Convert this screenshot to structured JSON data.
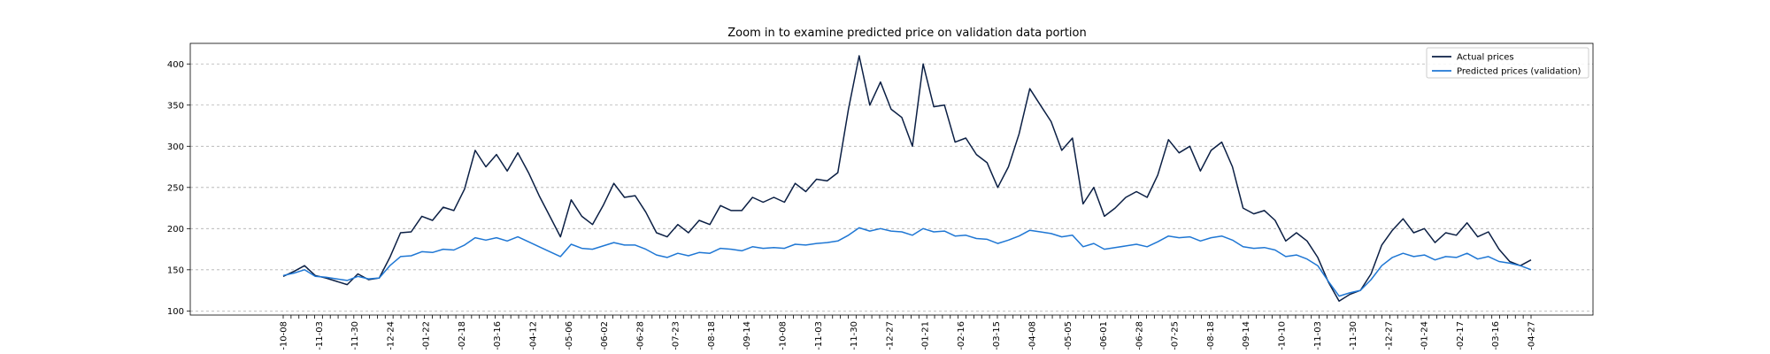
{
  "chart_data": {
    "type": "line",
    "title": "Zoom in to examine predicted price on validation data portion",
    "xlabel": "",
    "ylabel": "",
    "ylim": [
      95,
      425
    ],
    "yticks": [
      100,
      150,
      200,
      250,
      300,
      350,
      400
    ],
    "grid": "y-dashed",
    "legend_position": "top-right",
    "x_tick_labels": [
      "-10-08",
      "-11-03",
      "-11-30",
      "-12-24",
      "-01-22",
      "-02-18",
      "-03-16",
      "-04-12",
      "-05-06",
      "-06-02",
      "-06-28",
      "-07-23",
      "-08-18",
      "-09-14",
      "-10-08",
      "-11-03",
      "-11-30",
      "-12-27",
      "-01-21",
      "-02-16",
      "-03-15",
      "-04-08",
      "-05-05",
      "-06-01",
      "-06-28",
      "-07-25",
      "-08-18",
      "-09-14",
      "-10-10",
      "-11-03",
      "-11-30",
      "-12-27",
      "-01-24",
      "-02-17",
      "-03-16",
      "-04-27"
    ],
    "series": [
      {
        "name": "Actual prices",
        "color": "#0b1f44",
        "values": [
          [
            0,
            142
          ],
          [
            1,
            148
          ],
          [
            2,
            155
          ],
          [
            3,
            143
          ],
          [
            4,
            140
          ],
          [
            5,
            136
          ],
          [
            6,
            132
          ],
          [
            7,
            145
          ],
          [
            8,
            138
          ],
          [
            9,
            140
          ],
          [
            10,
            165
          ],
          [
            11,
            195
          ],
          [
            12,
            196
          ],
          [
            13,
            215
          ],
          [
            14,
            210
          ],
          [
            15,
            226
          ],
          [
            16,
            222
          ],
          [
            17,
            248
          ],
          [
            18,
            295
          ],
          [
            19,
            275
          ],
          [
            20,
            290
          ],
          [
            21,
            270
          ],
          [
            22,
            292
          ],
          [
            23,
            268
          ],
          [
            24,
            240
          ],
          [
            25,
            215
          ],
          [
            26,
            190
          ],
          [
            27,
            235
          ],
          [
            28,
            215
          ],
          [
            29,
            205
          ],
          [
            30,
            228
          ],
          [
            31,
            255
          ],
          [
            32,
            238
          ],
          [
            33,
            240
          ],
          [
            34,
            220
          ],
          [
            35,
            195
          ],
          [
            36,
            190
          ],
          [
            37,
            205
          ],
          [
            38,
            195
          ],
          [
            39,
            210
          ],
          [
            40,
            205
          ],
          [
            41,
            228
          ],
          [
            42,
            222
          ],
          [
            43,
            222
          ],
          [
            44,
            238
          ],
          [
            45,
            232
          ],
          [
            46,
            238
          ],
          [
            47,
            232
          ],
          [
            48,
            255
          ],
          [
            49,
            245
          ],
          [
            50,
            260
          ],
          [
            51,
            258
          ],
          [
            52,
            268
          ],
          [
            53,
            345
          ],
          [
            54,
            410
          ],
          [
            55,
            350
          ],
          [
            56,
            378
          ],
          [
            57,
            345
          ],
          [
            58,
            335
          ],
          [
            59,
            300
          ],
          [
            60,
            400
          ],
          [
            61,
            348
          ],
          [
            62,
            350
          ],
          [
            63,
            305
          ],
          [
            64,
            310
          ],
          [
            65,
            290
          ],
          [
            66,
            280
          ],
          [
            67,
            250
          ],
          [
            68,
            275
          ],
          [
            69,
            315
          ],
          [
            70,
            370
          ],
          [
            71,
            350
          ],
          [
            72,
            330
          ],
          [
            73,
            295
          ],
          [
            74,
            310
          ],
          [
            75,
            230
          ],
          [
            76,
            250
          ],
          [
            77,
            215
          ],
          [
            78,
            225
          ],
          [
            79,
            238
          ],
          [
            80,
            245
          ],
          [
            81,
            238
          ],
          [
            82,
            265
          ],
          [
            83,
            308
          ],
          [
            84,
            292
          ],
          [
            85,
            300
          ],
          [
            86,
            270
          ],
          [
            87,
            295
          ],
          [
            88,
            305
          ],
          [
            89,
            275
          ],
          [
            90,
            225
          ],
          [
            91,
            218
          ],
          [
            92,
            222
          ],
          [
            93,
            210
          ],
          [
            94,
            185
          ],
          [
            95,
            195
          ],
          [
            96,
            185
          ],
          [
            97,
            165
          ],
          [
            98,
            135
          ],
          [
            99,
            112
          ],
          [
            100,
            120
          ],
          [
            101,
            125
          ],
          [
            102,
            145
          ],
          [
            103,
            180
          ],
          [
            104,
            198
          ],
          [
            105,
            212
          ],
          [
            106,
            195
          ],
          [
            107,
            200
          ],
          [
            108,
            183
          ],
          [
            109,
            195
          ],
          [
            110,
            192
          ],
          [
            111,
            207
          ],
          [
            112,
            190
          ],
          [
            113,
            196
          ],
          [
            114,
            175
          ],
          [
            115,
            160
          ],
          [
            116,
            155
          ],
          [
            117,
            162
          ]
        ]
      },
      {
        "name": "Predicted prices (validation)",
        "color": "#1f77d4",
        "values": [
          [
            0,
            143
          ],
          [
            1,
            146
          ],
          [
            2,
            150
          ],
          [
            3,
            142
          ],
          [
            4,
            141
          ],
          [
            5,
            139
          ],
          [
            6,
            137
          ],
          [
            7,
            142
          ],
          [
            8,
            139
          ],
          [
            9,
            140
          ],
          [
            10,
            155
          ],
          [
            11,
            166
          ],
          [
            12,
            167
          ],
          [
            13,
            172
          ],
          [
            14,
            171
          ],
          [
            15,
            175
          ],
          [
            16,
            174
          ],
          [
            17,
            180
          ],
          [
            18,
            189
          ],
          [
            19,
            186
          ],
          [
            20,
            189
          ],
          [
            21,
            185
          ],
          [
            22,
            190
          ],
          [
            23,
            184
          ],
          [
            24,
            178
          ],
          [
            25,
            172
          ],
          [
            26,
            166
          ],
          [
            27,
            181
          ],
          [
            28,
            176
          ],
          [
            29,
            175
          ],
          [
            30,
            179
          ],
          [
            31,
            183
          ],
          [
            32,
            180
          ],
          [
            33,
            180
          ],
          [
            34,
            175
          ],
          [
            35,
            168
          ],
          [
            36,
            165
          ],
          [
            37,
            170
          ],
          [
            38,
            167
          ],
          [
            39,
            171
          ],
          [
            40,
            170
          ],
          [
            41,
            176
          ],
          [
            42,
            175
          ],
          [
            43,
            173
          ],
          [
            44,
            178
          ],
          [
            45,
            176
          ],
          [
            46,
            177
          ],
          [
            47,
            176
          ],
          [
            48,
            181
          ],
          [
            49,
            180
          ],
          [
            50,
            182
          ],
          [
            51,
            183
          ],
          [
            52,
            185
          ],
          [
            53,
            192
          ],
          [
            54,
            201
          ],
          [
            55,
            197
          ],
          [
            56,
            200
          ],
          [
            57,
            197
          ],
          [
            58,
            196
          ],
          [
            59,
            192
          ],
          [
            60,
            200
          ],
          [
            61,
            196
          ],
          [
            62,
            197
          ],
          [
            63,
            191
          ],
          [
            64,
            192
          ],
          [
            65,
            188
          ],
          [
            66,
            187
          ],
          [
            67,
            182
          ],
          [
            68,
            186
          ],
          [
            69,
            191
          ],
          [
            70,
            198
          ],
          [
            71,
            196
          ],
          [
            72,
            194
          ],
          [
            73,
            190
          ],
          [
            74,
            192
          ],
          [
            75,
            178
          ],
          [
            76,
            182
          ],
          [
            77,
            175
          ],
          [
            78,
            177
          ],
          [
            79,
            179
          ],
          [
            80,
            181
          ],
          [
            81,
            178
          ],
          [
            82,
            184
          ],
          [
            83,
            191
          ],
          [
            84,
            189
          ],
          [
            85,
            190
          ],
          [
            86,
            185
          ],
          [
            87,
            189
          ],
          [
            88,
            191
          ],
          [
            89,
            186
          ],
          [
            90,
            178
          ],
          [
            91,
            176
          ],
          [
            92,
            177
          ],
          [
            93,
            174
          ],
          [
            94,
            166
          ],
          [
            95,
            168
          ],
          [
            96,
            163
          ],
          [
            97,
            155
          ],
          [
            98,
            136
          ],
          [
            99,
            118
          ],
          [
            100,
            122
          ],
          [
            101,
            125
          ],
          [
            102,
            138
          ],
          [
            103,
            155
          ],
          [
            104,
            165
          ],
          [
            105,
            170
          ],
          [
            106,
            166
          ],
          [
            107,
            168
          ],
          [
            108,
            162
          ],
          [
            109,
            166
          ],
          [
            110,
            165
          ],
          [
            111,
            170
          ],
          [
            112,
            163
          ],
          [
            113,
            166
          ],
          [
            114,
            160
          ],
          [
            115,
            158
          ],
          [
            116,
            155
          ],
          [
            117,
            150
          ]
        ]
      }
    ]
  }
}
